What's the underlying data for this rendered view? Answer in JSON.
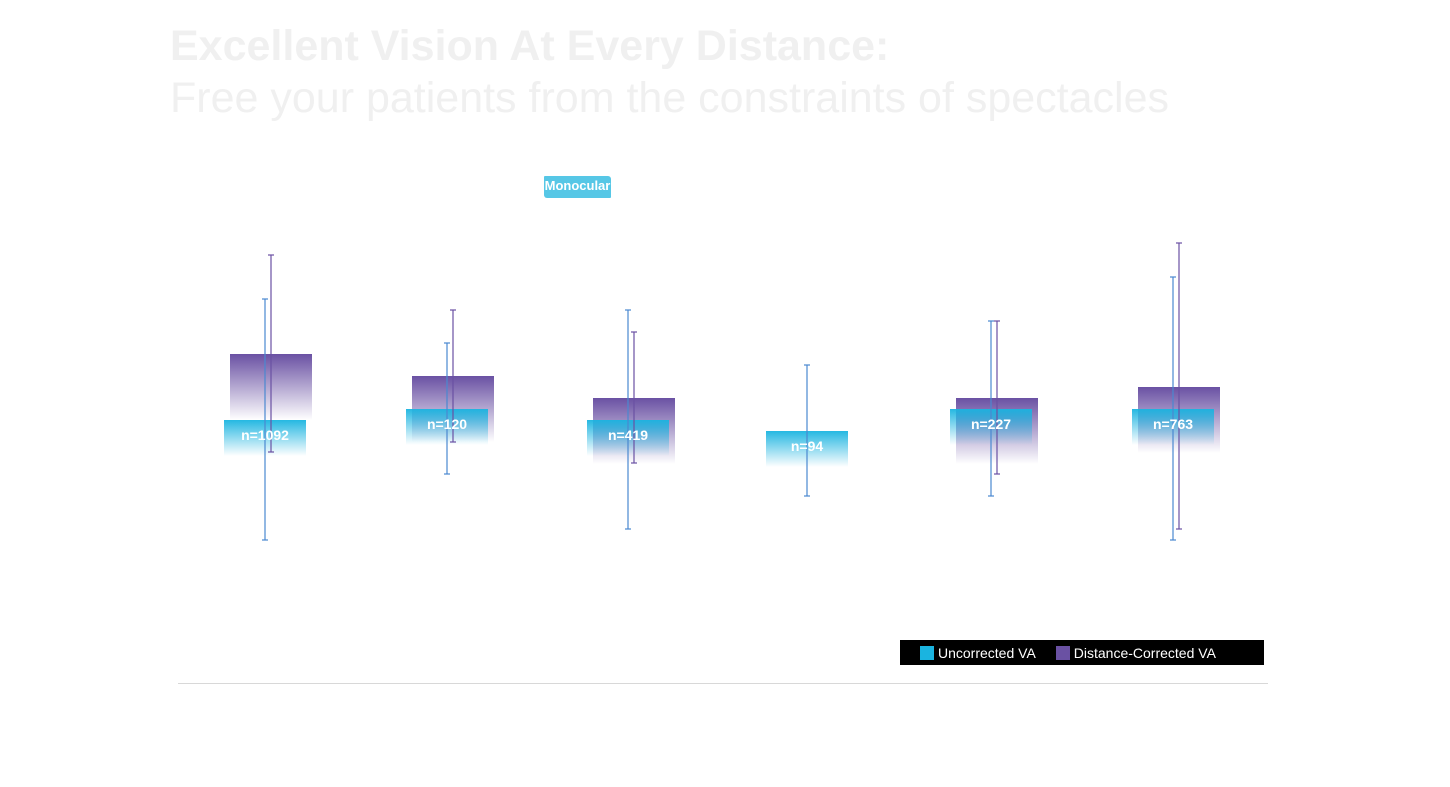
{
  "header": {
    "title_line1": "Excellent Vision At Every Distance:",
    "title_line2": "Free your patients from the constraints of spectacles"
  },
  "badge": {
    "label": "Monocular",
    "color": "#56c7e6"
  },
  "chart_data": {
    "type": "bar",
    "title": "",
    "xlabel": "",
    "ylabel": "",
    "ylim": [
      0,
      4
    ],
    "grid": false,
    "legend_position": "bottom-right",
    "categories": [
      "n=1092",
      "n=120",
      "n=419",
      "n=94",
      "n=227",
      "n=763"
    ],
    "series": [
      {
        "name": "Uncorrected VA",
        "color": "#1ab4e0",
        "error_color": "#4a88d0",
        "values": [
          1.4,
          1.51,
          1.4,
          1.29,
          1.51,
          1.51
        ],
        "error_low": [
          0.2,
          0.86,
          0.31,
          0.64,
          0.64,
          0.2
        ],
        "error_high": [
          2.61,
          2.17,
          2.5,
          1.95,
          2.39,
          2.83
        ]
      },
      {
        "name": "Distance-Corrected VA",
        "color": "#6a51a3",
        "error_color": "#6a51a3",
        "values": [
          2.06,
          1.84,
          1.62,
          null,
          1.62,
          1.73
        ],
        "error_low": [
          1.08,
          1.18,
          0.97,
          null,
          0.86,
          0.31
        ],
        "error_high": [
          3.05,
          2.5,
          2.28,
          null,
          2.39,
          3.17
        ]
      }
    ]
  },
  "legend": {
    "items": [
      {
        "label": "Uncorrected VA",
        "color": "#1ab4e0"
      },
      {
        "label": "Distance-Corrected VA",
        "color": "#6a51a3"
      }
    ]
  }
}
